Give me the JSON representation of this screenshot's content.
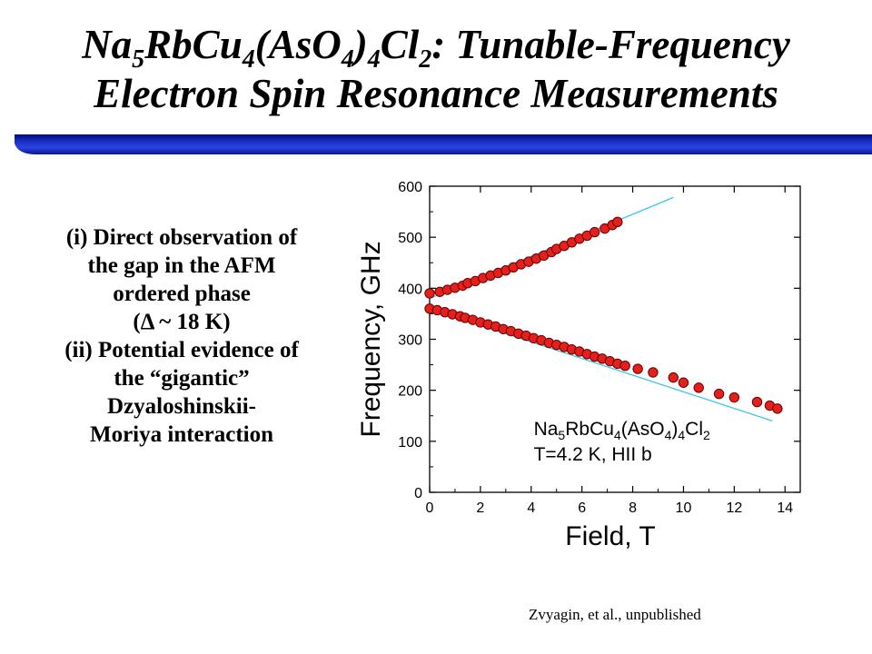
{
  "slide": {
    "title_line1_parts": [
      "Na",
      "5",
      "RbCu",
      "4",
      "(AsO",
      "4",
      ")",
      "4",
      "Cl",
      "2",
      ": Tunable-Frequency"
    ],
    "title_line2": "Electron Spin Resonance Measurements",
    "bullets": [
      "(i)   Direct observation of",
      "the gap in the AFM",
      "ordered phase",
      "(Δ ~ 18 K)",
      "(ii) Potential evidence of",
      "the “gigantic”",
      "Dzyaloshinskii-",
      "Moriya interaction"
    ],
    "credit": "Zvyagin, et al., unpublished",
    "colors": {
      "band_blue": "#1b2fc4",
      "marker_red": "#e3201b",
      "fit_line": "#3fc4ee"
    }
  },
  "chart_data": {
    "type": "scatter",
    "xlabel": "Field, T",
    "ylabel": "Frequency, GHz",
    "xlim": [
      0,
      14.6
    ],
    "ylim": [
      0,
      600
    ],
    "xticks": [
      0,
      2,
      4,
      6,
      8,
      10,
      12,
      14
    ],
    "yticks": [
      0,
      100,
      200,
      300,
      400,
      500,
      600
    ],
    "annotation_line1_parts": [
      "Na",
      "5",
      "RbCu",
      "4",
      "(AsO",
      "4",
      ")",
      "4",
      "Cl",
      "2"
    ],
    "annotation_line2": "T=4.2 K, HII b",
    "series": [
      {
        "x": [
          0.0,
          0.4,
          0.7,
          1.0,
          1.3,
          1.5,
          1.8,
          2.1,
          2.4,
          2.7,
          3.0,
          3.3,
          3.6,
          3.9,
          4.2,
          4.5,
          4.8,
          5.0,
          5.3,
          5.6,
          5.9,
          6.2,
          6.5,
          6.9,
          7.2,
          7.4
        ],
        "y": [
          390,
          393,
          397,
          401,
          405,
          410,
          414,
          420,
          425,
          430,
          435,
          441,
          447,
          452,
          458,
          464,
          471,
          477,
          483,
          490,
          497,
          503,
          510,
          517,
          524,
          530
        ]
      },
      {
        "x": [
          0.0,
          0.3,
          0.6,
          0.9,
          1.2,
          1.4,
          1.7,
          2.0,
          2.3,
          2.6,
          2.9,
          3.2,
          3.5,
          3.8,
          4.1,
          4.4,
          4.7,
          5.0,
          5.3,
          5.6,
          5.9,
          6.2,
          6.5,
          6.8,
          7.1,
          7.4,
          7.7,
          8.2,
          8.8,
          9.6,
          10.0,
          10.6,
          11.4,
          12.0,
          12.9,
          13.4,
          13.7
        ],
        "y": [
          360,
          357,
          353,
          349,
          345,
          342,
          338,
          333,
          329,
          325,
          320,
          316,
          311,
          307,
          302,
          298,
          293,
          289,
          285,
          280,
          276,
          271,
          266,
          262,
          257,
          252,
          248,
          242,
          235,
          225,
          215,
          205,
          193,
          186,
          177,
          170,
          164
        ]
      }
    ],
    "fit_lines": [
      {
        "x": [
          0.0,
          9.6
        ],
        "y": [
          380,
          578
        ]
      },
      {
        "x": [
          0.0,
          13.5
        ],
        "y": [
          360,
          140
        ]
      }
    ]
  }
}
